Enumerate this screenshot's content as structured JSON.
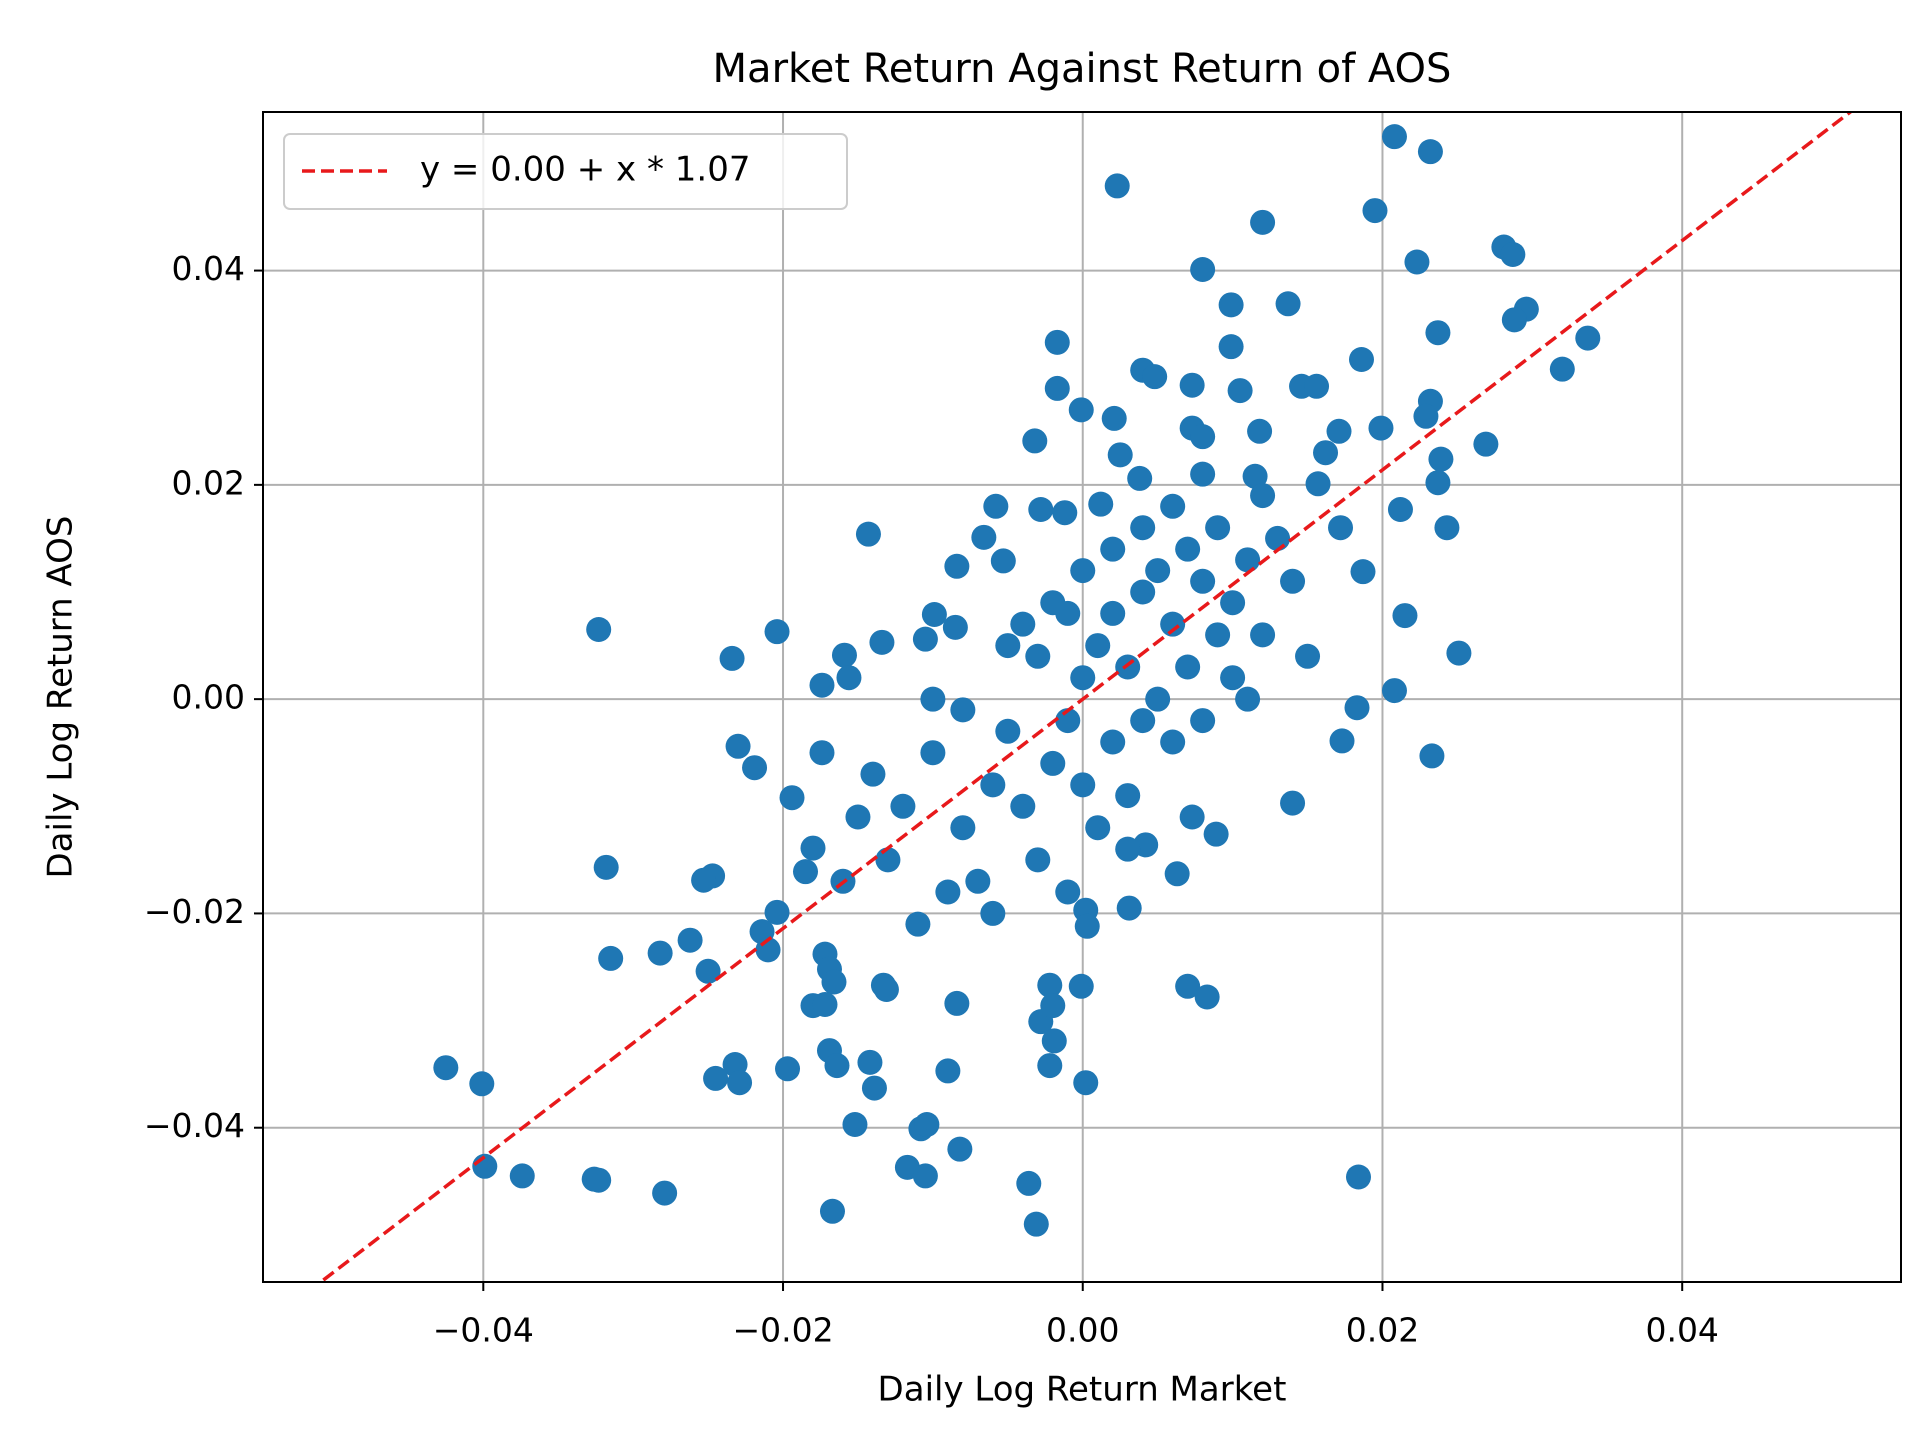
{
  "chart_data": {
    "type": "scatter",
    "title": "Market Return Against Return of AOS",
    "xlabel": "Daily Log Return Market",
    "ylabel": "Daily Log Return AOS",
    "color": "#1f77b4",
    "grid": true,
    "legend": "upper left",
    "fit": {
      "label": "y = 0.00 + x * 1.07",
      "intercept": 0.0,
      "slope": 1.07,
      "color": "#e8191b"
    },
    "xlim": [
      -0.0547,
      0.0546
    ],
    "ylim": [
      -0.0544,
      0.0548
    ],
    "xticks": [
      {
        "value": -0.04,
        "label": "−0.04"
      },
      {
        "value": -0.02,
        "label": "−0.02"
      },
      {
        "value": 0,
        "label": "0.00"
      },
      0.02,
      0.04
    ],
    "yticks": [
      {
        "value": -0.04,
        "label": "−0.04"
      },
      {
        "value": -0.02,
        "label": "−0.02"
      },
      {
        "value": 0,
        "label": "0.00"
      },
      0.02,
      0.04
    ],
    "x": [
      0.0208,
      0.0232,
      0.0023,
      0.0195,
      0.012,
      0.0281,
      0.0287,
      0.008,
      0.0223,
      0.0099,
      0.0137,
      0.0296,
      0.0288,
      0.0237,
      0.0337,
      -0.0017,
      0.0099,
      0.0186,
      0.032,
      0.004,
      0.0048,
      0.0073,
      -0.0017,
      0.0146,
      0.0156,
      0.0105,
      0.0232,
      -0.0001,
      0.0021,
      0.0229,
      -0.0032,
      0.0269,
      0.0199,
      0.0171,
      0.0118,
      0.0073,
      0.008,
      0.0025,
      0.0239,
      0.0162,
      0.0038,
      0.0115,
      0.0237,
      0.0157,
      -0.0058,
      -0.0028,
      -0.0012,
      0.0012,
      0.0212,
      -0.0143,
      0.0243,
      0.0172,
      -0.0066,
      -0.0084,
      -0.0053,
      0.0187,
      -0.0099,
      -0.0085,
      -0.0105,
      -0.0134,
      0.0215,
      -0.0323,
      -0.0204,
      -0.0234,
      -0.0159,
      0.0251,
      -0.0156,
      -0.0174,
      0.0208,
      0.0183,
      0.0173,
      0.0233,
      -0.023,
      -0.0219,
      -0.0174,
      -0.0194,
      0.014,
      0.0073,
      0.0089,
      -0.0318,
      -0.0247,
      -0.0253,
      -0.018,
      -0.0185,
      0.0042,
      0.0063,
      0.0031,
      0.0002,
      0.0003,
      -0.0204,
      -0.0214,
      -0.021,
      -0.0262,
      -0.0282,
      -0.0315,
      -0.025,
      -0.0172,
      -0.0169,
      -0.0166,
      -0.0133,
      -0.0131,
      -0.018,
      -0.0172,
      -0.0084,
      -0.0022,
      -0.0001,
      0.007,
      0.0083,
      -0.0028,
      -0.002,
      -0.0019,
      -0.0022,
      -0.0169,
      -0.0164,
      -0.0142,
      -0.0139,
      -0.0197,
      -0.0232,
      -0.0245,
      -0.0229,
      -0.009,
      0.0002,
      -0.0425,
      -0.0401,
      -0.0399,
      -0.0374,
      -0.0326,
      -0.0323,
      -0.0279,
      -0.0167,
      -0.0152,
      -0.0108,
      -0.0104,
      -0.0117,
      -0.0105,
      -0.0082,
      -0.0036,
      -0.0031,
      0.0184,
      -0.012,
      -0.01,
      -0.008,
      -0.006,
      -0.005,
      -0.004,
      -0.003,
      -0.002,
      -0.001,
      0.0,
      0.001,
      0.002,
      0.003,
      0.004,
      0.005,
      0.006,
      0.007,
      0.008,
      0.009,
      0.01,
      0.011,
      0.012,
      0.013,
      0.014,
      0.015,
      -0.009,
      -0.007,
      -0.006,
      -0.011,
      -0.013,
      -0.015,
      -0.014,
      -0.016,
      -0.01,
      -0.008,
      -0.005,
      -0.003,
      -0.001,
      0.0,
      0.001,
      0.002,
      0.003,
      0.004,
      0.005,
      0.006,
      0.007,
      0.008,
      0.009,
      0.01,
      0.011,
      0.012,
      0.006,
      0.004,
      0.002,
      0.0,
      -0.002,
      -0.004,
      0.008,
      0.003,
      -0.001
    ],
    "values": [
      0.0525,
      0.0511,
      0.0479,
      0.0456,
      0.0445,
      0.0422,
      0.0415,
      0.0401,
      0.0408,
      0.0368,
      0.0369,
      0.0364,
      0.0354,
      0.0342,
      0.0337,
      0.0333,
      0.0329,
      0.0317,
      0.0308,
      0.0307,
      0.0301,
      0.0293,
      0.029,
      0.0292,
      0.0292,
      0.0288,
      0.0278,
      0.027,
      0.0262,
      0.0264,
      0.0241,
      0.0238,
      0.0253,
      0.025,
      0.025,
      0.0253,
      0.0245,
      0.0228,
      0.0224,
      0.023,
      0.0206,
      0.0208,
      0.0202,
      0.0201,
      0.018,
      0.0177,
      0.0174,
      0.0182,
      0.0177,
      0.0154,
      0.016,
      0.016,
      0.0151,
      0.0124,
      0.0129,
      0.0119,
      0.0079,
      0.0067,
      0.0056,
      0.0053,
      0.0078,
      0.0065,
      0.0063,
      0.0038,
      0.0041,
      0.0043,
      0.002,
      0.0013,
      0.0008,
      -0.0008,
      -0.0039,
      -0.0053,
      -0.0044,
      -0.0064,
      -0.005,
      -0.0092,
      -0.0097,
      -0.011,
      -0.0126,
      -0.0157,
      -0.0165,
      -0.0169,
      -0.0139,
      -0.0161,
      -0.0136,
      -0.0163,
      -0.0195,
      -0.0197,
      -0.0212,
      -0.0199,
      -0.0217,
      -0.0234,
      -0.0225,
      -0.0237,
      -0.0242,
      -0.0254,
      -0.0238,
      -0.0252,
      -0.0264,
      -0.0267,
      -0.0271,
      -0.0286,
      -0.0285,
      -0.0284,
      -0.0267,
      -0.0268,
      -0.0268,
      -0.0278,
      -0.0301,
      -0.0286,
      -0.0319,
      -0.0342,
      -0.0328,
      -0.0342,
      -0.0339,
      -0.0363,
      -0.0345,
      -0.0341,
      -0.0354,
      -0.0358,
      -0.0347,
      -0.0358,
      -0.0344,
      -0.0359,
      -0.0436,
      -0.0445,
      -0.0448,
      -0.0449,
      -0.0461,
      -0.0478,
      -0.0397,
      -0.0401,
      -0.0397,
      -0.0437,
      -0.0445,
      -0.042,
      -0.0452,
      -0.049,
      -0.0446,
      -0.01,
      -0.005,
      -0.012,
      -0.008,
      -0.003,
      -0.01,
      -0.015,
      -0.006,
      -0.002,
      0.002,
      0.005,
      0.008,
      0.003,
      0.01,
      0.012,
      0.007,
      0.014,
      0.011,
      0.016,
      0.009,
      0.013,
      0.006,
      0.015,
      0.011,
      0.004,
      -0.018,
      -0.017,
      -0.02,
      -0.021,
      -0.015,
      -0.011,
      -0.007,
      -0.017,
      0.0,
      -0.001,
      0.005,
      0.004,
      0.008,
      -0.008,
      -0.012,
      -0.004,
      -0.009,
      -0.002,
      0.0,
      -0.004,
      0.003,
      -0.002,
      0.006,
      0.002,
      0.0,
      0.019,
      0.018,
      0.016,
      0.014,
      0.012,
      0.009,
      0.007,
      0.021,
      -0.014,
      -0.018
    ]
  }
}
